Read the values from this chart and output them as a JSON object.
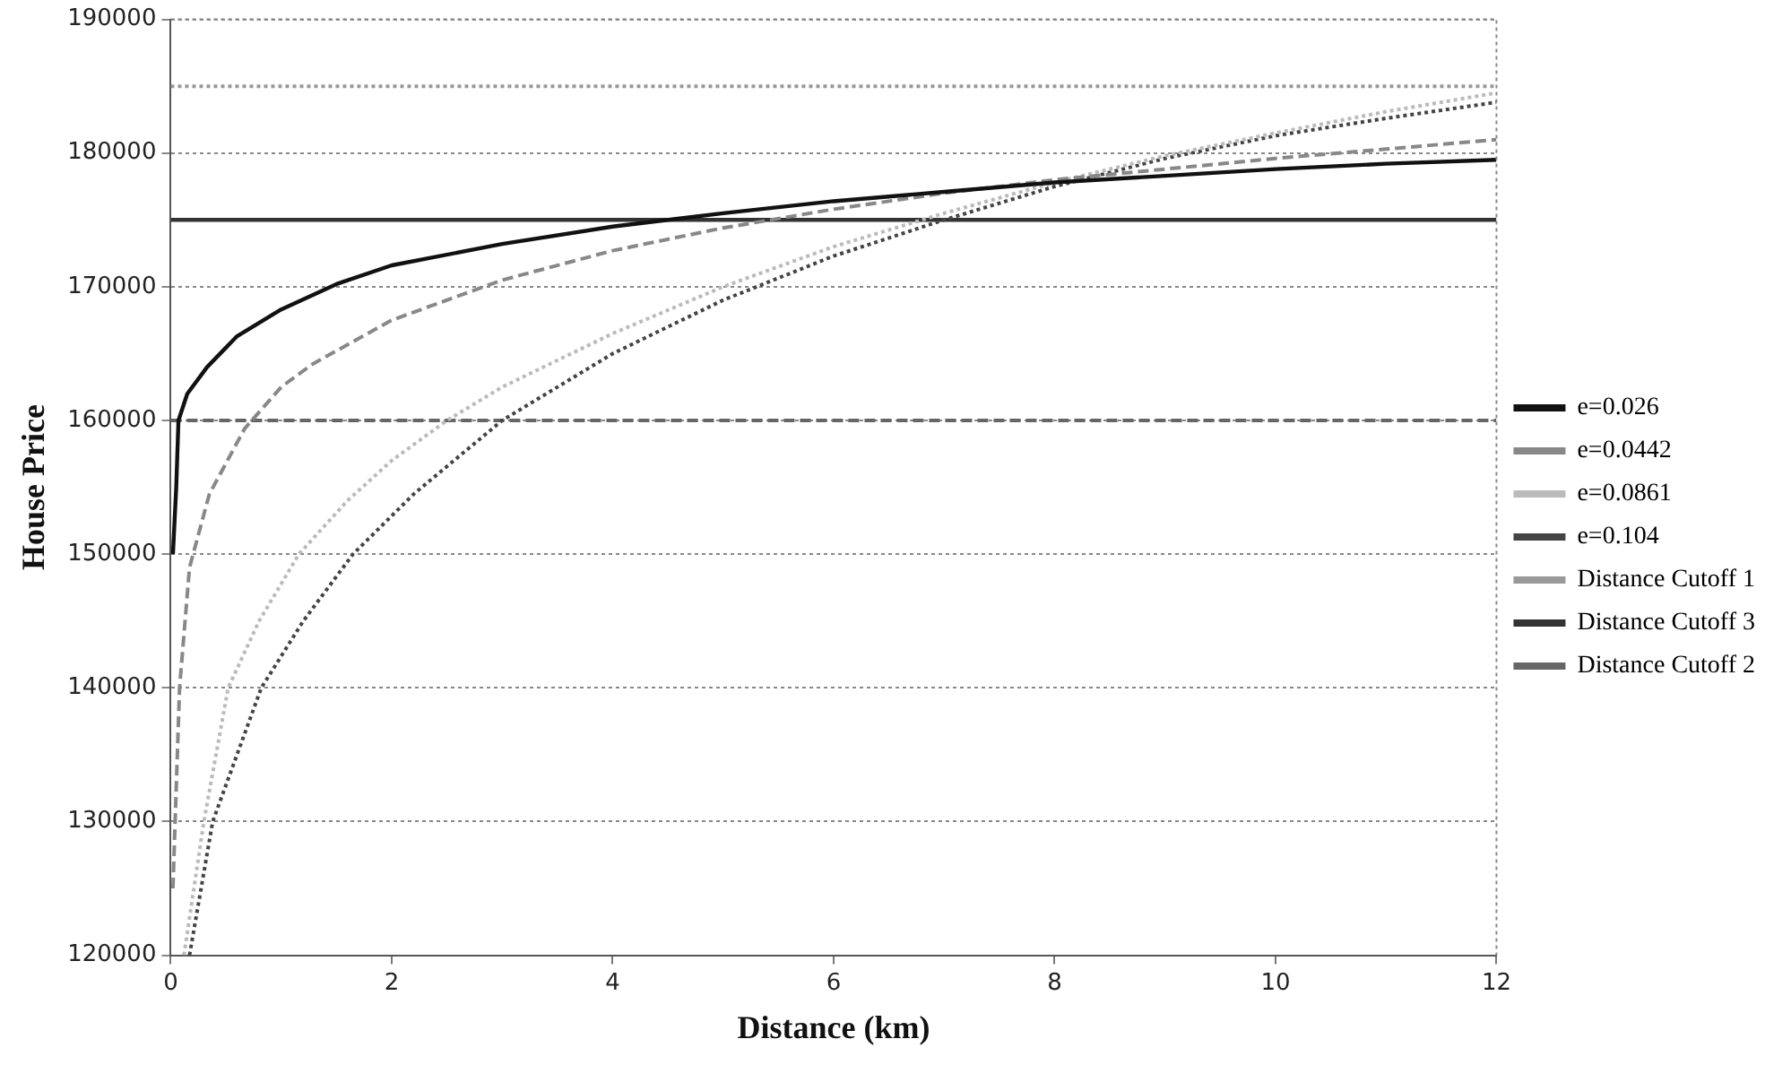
{
  "chart_data": {
    "type": "line",
    "xlabel": "Distance (km)",
    "ylabel": "House Price",
    "xlim": [
      0,
      12
    ],
    "ylim": [
      120000,
      190000
    ],
    "xticks": [
      0,
      2,
      4,
      6,
      8,
      10,
      12
    ],
    "yticks": [
      120000,
      130000,
      140000,
      150000,
      160000,
      170000,
      180000,
      190000
    ],
    "grid": "y",
    "legend": "right",
    "marker": "none",
    "series": [
      {
        "name": "e=0.026",
        "color": "#111111",
        "line_style": "solid",
        "x": [
          0.02,
          0.05,
          0.07,
          0.15,
          0.33,
          0.6,
          1,
          1.5,
          2,
          3,
          4,
          5,
          6,
          7,
          8,
          9,
          10,
          11,
          12
        ],
        "values": [
          150000,
          155000,
          160000,
          162000,
          164000,
          166300,
          168300,
          170200,
          171600,
          173200,
          174500,
          175500,
          176400,
          177100,
          177800,
          178300,
          178800,
          179200,
          179500
        ]
      },
      {
        "name": "e=0.0442",
        "color": "#888888",
        "line_style": "dashed",
        "x": [
          0.02,
          0.08,
          0.17,
          0.35,
          0.67,
          1,
          1.28,
          2,
          3,
          4,
          5,
          6,
          7,
          8,
          9,
          10,
          11,
          12
        ],
        "values": [
          125000,
          140000,
          149000,
          154500,
          159400,
          162500,
          164200,
          167500,
          170500,
          172700,
          174400,
          175800,
          177000,
          178000,
          178800,
          179600,
          180300,
          181000
        ]
      },
      {
        "name": "e=0.0861",
        "color": "#bbbbbb",
        "line_style": "dotted",
        "x": [
          0.12,
          0.3,
          0.52,
          0.8,
          1.16,
          1.6,
          2,
          2.5,
          3,
          4,
          5,
          6,
          7,
          8,
          9,
          10,
          11,
          12
        ],
        "values": [
          120000,
          130000,
          140000,
          145000,
          150000,
          154000,
          157000,
          160000,
          162500,
          166500,
          170000,
          173000,
          175500,
          177800,
          179800,
          181500,
          183100,
          184500
        ]
      },
      {
        "name": "e=0.104",
        "color": "#444444",
        "line_style": "dotted",
        "x": [
          0.17,
          0.38,
          0.82,
          1.2,
          1.65,
          2.2,
          3,
          4,
          5,
          6,
          7,
          8,
          9,
          10,
          11,
          12
        ],
        "values": [
          120000,
          130000,
          140000,
          145000,
          150000,
          154500,
          160000,
          165000,
          169000,
          172300,
          175000,
          177500,
          179600,
          181300,
          182600,
          183800
        ]
      },
      {
        "name": "Distance Cutoff 1",
        "color": "#999999",
        "line_style": "dotted",
        "x": [
          0,
          12
        ],
        "values": [
          185000,
          185000
        ]
      },
      {
        "name": "Distance Cutoff 3",
        "color": "#333333",
        "line_style": "solid",
        "x": [
          0,
          12
        ],
        "values": [
          175000,
          175000
        ]
      },
      {
        "name": "Distance Cutoff 2",
        "color": "#666666",
        "line_style": "dashed",
        "x": [
          0,
          12
        ],
        "values": [
          160000,
          160000
        ]
      }
    ]
  }
}
